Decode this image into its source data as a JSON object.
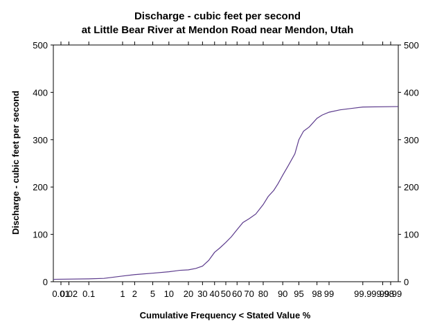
{
  "chart_data": {
    "type": "line",
    "title": [
      "Discharge - cubic feet per second",
      "at Little Bear River at Mendon Road near Mendon, Utah"
    ],
    "xlabel": "Cumulative Frequency < Stated Value %",
    "ylabel": "Discharge - cubic feet per second",
    "x_scale": "probability",
    "xlim": [
      0.005,
      99.995
    ],
    "ylim": [
      0,
      500
    ],
    "y_ticks": [
      0,
      100,
      200,
      300,
      400,
      500
    ],
    "x_ticks": [
      {
        "value": 0.01,
        "label": "0.01"
      },
      {
        "value": 0.02,
        "label": "0.02"
      },
      {
        "value": 0.1,
        "label": "0.1"
      },
      {
        "value": 1,
        "label": "1"
      },
      {
        "value": 2,
        "label": "2"
      },
      {
        "value": 5,
        "label": "5"
      },
      {
        "value": 10,
        "label": "10"
      },
      {
        "value": 20,
        "label": "20"
      },
      {
        "value": 30,
        "label": "30"
      },
      {
        "value": 40,
        "label": "40"
      },
      {
        "value": 50,
        "label": "50"
      },
      {
        "value": 60,
        "label": "60"
      },
      {
        "value": 70,
        "label": "70"
      },
      {
        "value": 80,
        "label": "80"
      },
      {
        "value": 90,
        "label": "90"
      },
      {
        "value": 95,
        "label": "95"
      },
      {
        "value": 98,
        "label": "98"
      },
      {
        "value": 99,
        "label": "99"
      },
      {
        "value": 99.9,
        "label": "99.9"
      },
      {
        "value": 99.98,
        "label": "99.98"
      },
      {
        "value": 99.99,
        "label": "99.99"
      }
    ],
    "grid": false,
    "series_color": "#5b3a8c",
    "series": [
      {
        "x": [
          0.005,
          0.1,
          0.3,
          1,
          2,
          5,
          10,
          15,
          20,
          25,
          30,
          35,
          40,
          45,
          50,
          55,
          60,
          65,
          70,
          75,
          80,
          83,
          86,
          88,
          90,
          92,
          94,
          95,
          96,
          97,
          98,
          98.5,
          99,
          99.5,
          99.9,
          99.995
        ],
        "y": [
          5,
          6,
          7,
          12,
          15,
          18,
          21,
          24,
          25,
          28,
          33,
          45,
          62,
          72,
          83,
          95,
          110,
          125,
          133,
          143,
          163,
          180,
          193,
          207,
          225,
          245,
          270,
          300,
          318,
          327,
          345,
          352,
          358,
          363,
          369,
          370
        ]
      }
    ]
  }
}
